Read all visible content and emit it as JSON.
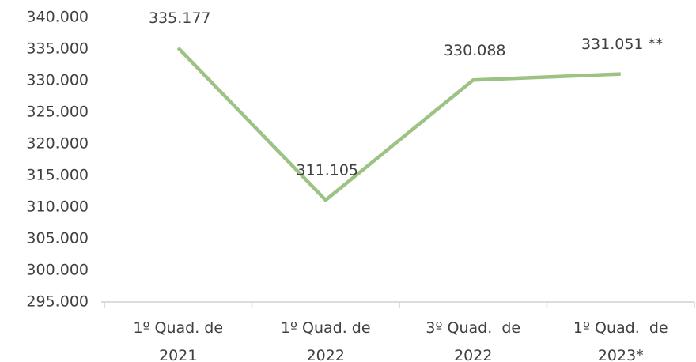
{
  "chart_data": {
    "type": "line",
    "categories": [
      "1º Quad. de 2021",
      "1º Quad. de 2022",
      "3º Quad.  de 2022",
      "1º Quad.  de 2023*"
    ],
    "series": [
      {
        "name": null,
        "color": "#9cc384",
        "values": [
          335177,
          311105,
          330088,
          331051
        ],
        "value_labels": [
          "335.177",
          "311.105",
          "330.088",
          "331.051 **"
        ]
      }
    ],
    "ylim": [
      295000,
      340000
    ],
    "yticks": [
      {
        "value": 295000,
        "label": "295.000"
      },
      {
        "value": 300000,
        "label": "300.000"
      },
      {
        "value": 305000,
        "label": "305.000"
      },
      {
        "value": 310000,
        "label": "310.000"
      },
      {
        "value": 315000,
        "label": "315.000"
      },
      {
        "value": 320000,
        "label": "320.000"
      },
      {
        "value": 325000,
        "label": "325.000"
      },
      {
        "value": 330000,
        "label": "330.000"
      },
      {
        "value": 335000,
        "label": "335.000"
      },
      {
        "value": 340000,
        "label": "340.000"
      }
    ],
    "grid": false
  }
}
